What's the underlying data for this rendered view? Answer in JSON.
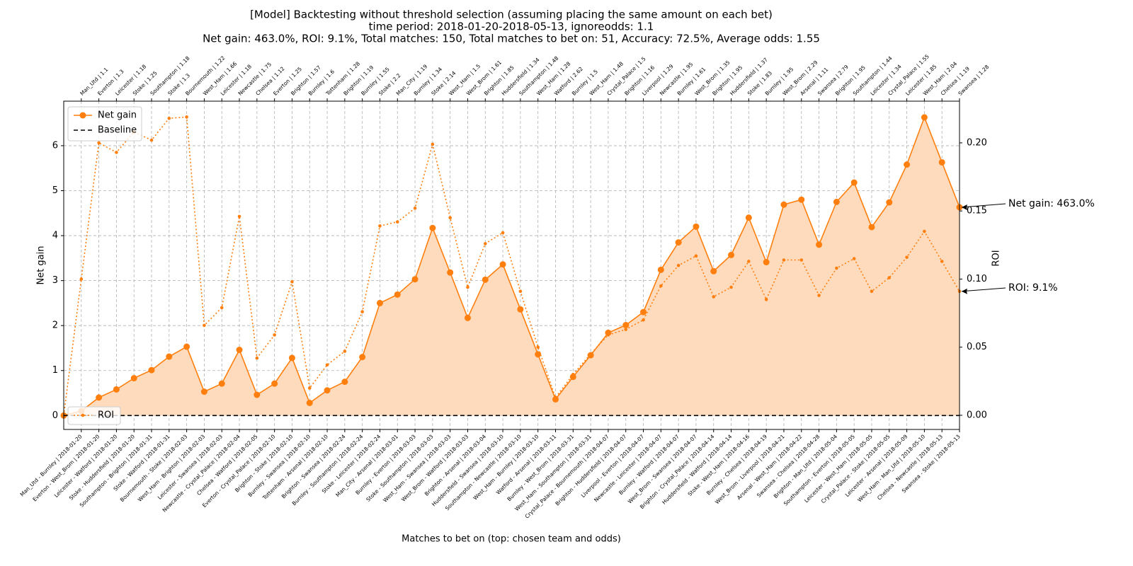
{
  "chart_data": {
    "type": "line",
    "title": [
      "[Model] Backtesting without threshold selection (assuming placing the same amount on each bet)",
      "time period: 2018-01-20-2018-05-13, ignoreodds: 1.1",
      "Net gain: 463.0%, ROI: 9.1%, Total matches: 150, Total matches to bet on: 51, Accuracy: 72.5%, Average odds: 1.55"
    ],
    "xlabel": "Matches to bet on (top: chosen team and odds)",
    "ylabel": "Net gain",
    "y2label": "ROI",
    "x": [
      0,
      1,
      2,
      3,
      4,
      5,
      6,
      7,
      8,
      9,
      10,
      11,
      12,
      13,
      14,
      15,
      16,
      17,
      18,
      19,
      20,
      21,
      22,
      23,
      24,
      25,
      26,
      27,
      28,
      29,
      30,
      31,
      32,
      33,
      34,
      35,
      36,
      37,
      38,
      39,
      40,
      41,
      42,
      43,
      44,
      45,
      46,
      47,
      48,
      49,
      50,
      51
    ],
    "categories": [
      null,
      "Man_Utd - Burnley | 2018-01-20",
      "Everton - West_Brom | 2018-01-20",
      "Leicester - Watford | 2018-01-20",
      "Stoke - Huddersfield | 2018-01-20",
      "Southampton - Brighton | 2018-01-31",
      "Stoke - Watford | 2018-01-31",
      "Bournemouth - Stoke | 2018-02-03",
      "West_Ham - Brighton | 2018-02-03",
      "Leicester - Swansea | 2018-02-03",
      "Newcastle - Crystal_Palace | 2018-02-04",
      "Chelsea - Watford | 2018-02-05",
      "Everton - Crystal_Palace | 2018-02-10",
      "Brighton - Stoke | 2018-02-10",
      "Burnley - Swansea | 2018-02-10",
      "Tottenham - Arsenal | 2018-02-10",
      "Brighton - Swansea | 2018-02-24",
      "Burnley - Southampton | 2018-02-24",
      "Stoke - Leicester | 2018-02-24",
      "Man_City - Arsenal | 2018-03-01",
      "Burnley - Everton | 2018-03-03",
      "Stoke - Southampton | 2018-03-03",
      "West_Ham - Swansea | 2018-03-03",
      "West_Brom - Watford | 2018-03-03",
      "Brighton - Arsenal | 2018-03-04",
      "Huddersfield - Swansea | 2018-03-10",
      "Southampton - Newcastle | 2018-03-10",
      "West_Ham - Burnley | 2018-03-10",
      "Watford - Arsenal | 2018-03-11",
      "Burnley - West_Brom | 2018-03-31",
      "West_Ham - Southampton | 2018-03-31",
      "Crystal_Palace - Bournemouth | 2018-04-07",
      "Brighton - Huddersfield | 2018-04-07",
      "Liverpool - Everton | 2018-04-07",
      "Newcastle - Leicester | 2018-04-07",
      "Burnley - Watford | 2018-04-07",
      "West_Brom - Swansea | 2018-04-07",
      "Brighton - Crystal_Palace | 2018-04-14",
      "Huddersfield - Watford | 2018-04-14",
      "Stoke - West_Ham | 2018-04-16",
      "Burnley - Chelsea | 2018-04-19",
      "West_Brom - Liverpool | 2018-04-21",
      "Arsenal - West_Ham | 2018-04-22",
      "Swansea - Chelsea | 2018-04-28",
      "Brighton - Man_Utd | 2018-05-04",
      "Southampton - Everton | 2018-05-05",
      "Leicester - West_Ham | 2018-05-05",
      "Crystal_Palace - Stoke | 2018-05-05",
      "Leicester - Arsenal | 2018-05-09",
      "West_Ham - Man_Utd | 2018-05-10",
      "Chelsea - Newcastle | 2018-05-13",
      "Swansea - Stoke | 2018-05-13"
    ],
    "top_categories": [
      null,
      "Man_Utd | 1.1",
      "Everton | 1.3",
      "Leicester | 1.18",
      "Stoke | 1.25",
      "Southampton | 1.18",
      "Stoke | 1.3",
      "Bournemouth | 1.22",
      "West_Ham | 1.66",
      "Leicester | 1.18",
      "Newcastle | 1.75",
      "Chelsea | 1.12",
      "Everton | 1.25",
      "Brighton | 1.57",
      "Burnley | 1.6",
      "Tottenham | 1.28",
      "Brighton | 1.19",
      "Burnley | 1.55",
      "Stoke | 2.2",
      "Man_City | 1.19",
      "Burnley | 1.34",
      "Stoke | 2.14",
      "West_Ham | 1.5",
      "West_Brom | 1.61",
      "Brighton | 1.85",
      "Huddersfield | 1.34",
      "Southampton | 1.48",
      "West_Ham | 1.28",
      "Watford | 2.62",
      "Burnley | 1.5",
      "West_Ham | 1.48",
      "Crystal_Palace | 1.5",
      "Brighton | 1.16",
      "Liverpool | 1.29",
      "Newcastle | 1.95",
      "Burnley | 1.61",
      "West_Brom | 1.35",
      "Brighton | 1.95",
      "Huddersfield | 1.37",
      "Stoke | 1.83",
      "Burnley | 1.95",
      "West_Brom | 2.29",
      "Arsenal | 1.11",
      "Swansea | 2.79",
      "Brighton | 1.95",
      "Southampton | 1.44",
      "Leicester | 1.34",
      "Crystal_Palace | 1.55",
      "Leicester | 1.85",
      "West_Ham | 2.04",
      "Chelsea | 1.19",
      "Swansea | 1.28"
    ],
    "series": [
      {
        "name": "Net gain",
        "color": "#ff7f0e",
        "fill": "#ffdbbd",
        "marker": "circle",
        "linestyle": "solid",
        "values": [
          0,
          0.1,
          0.4,
          0.58,
          0.83,
          1.01,
          1.31,
          1.53,
          0.53,
          0.71,
          1.46,
          0.46,
          0.71,
          1.28,
          0.28,
          0.56,
          0.75,
          1.3,
          2.5,
          2.69,
          3.03,
          4.17,
          3.18,
          2.17,
          3.02,
          3.36,
          2.36,
          1.36,
          0.36,
          0.86,
          1.34,
          1.84,
          2.01,
          2.3,
          3.24,
          3.85,
          4.2,
          3.21,
          3.57,
          4.4,
          3.41,
          4.69,
          4.8,
          3.8,
          4.75,
          5.18,
          4.19,
          4.74,
          5.58,
          6.63,
          5.63,
          4.63
        ]
      },
      {
        "name": "ROI",
        "color": "#ff7f0e",
        "axis": "y2",
        "marker": "dot",
        "linestyle": "dotted",
        "values": [
          0,
          0.1,
          0.2,
          0.193,
          0.208,
          0.202,
          0.218,
          0.219,
          0.066,
          0.079,
          0.146,
          0.042,
          0.059,
          0.098,
          0.02,
          0.037,
          0.047,
          0.076,
          0.139,
          0.142,
          0.152,
          0.199,
          0.145,
          0.094,
          0.126,
          0.134,
          0.091,
          0.05,
          0.013,
          0.03,
          0.045,
          0.059,
          0.063,
          0.07,
          0.095,
          0.11,
          0.117,
          0.087,
          0.094,
          0.113,
          0.085,
          0.114,
          0.114,
          0.088,
          0.108,
          0.115,
          0.091,
          0.101,
          0.116,
          0.135,
          0.113,
          0.091
        ]
      }
    ],
    "baseline": {
      "name": "Baseline",
      "value": 0,
      "color": "#000000",
      "linestyle": "dashed"
    },
    "annotations": [
      {
        "text": "Net gain: 463.0%",
        "series": 0
      },
      {
        "text": "ROI: 9.1%",
        "series": 1
      }
    ],
    "xlim": [
      0,
      51
    ],
    "ylim": [
      -0.31,
      6.99
    ],
    "yticks": [
      0,
      1,
      2,
      3,
      4,
      5,
      6
    ],
    "y2lim": [
      -0.0104,
      0.2306
    ],
    "y2ticks": [
      {
        "value": 0,
        "label": "0.00"
      },
      {
        "value": 0.05,
        "label": "0.05"
      },
      {
        "value": 0.1,
        "label": "0.10"
      },
      {
        "value": 0.15,
        "label": "0.15"
      },
      {
        "value": 0.2,
        "label": "0.20"
      }
    ],
    "grid": true
  }
}
